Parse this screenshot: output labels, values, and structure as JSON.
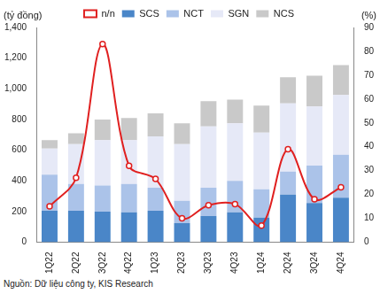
{
  "chart_data": {
    "type": "bar",
    "stacked": true,
    "grid": false,
    "legend": "top",
    "y_label": "(tỷ đồng)",
    "y2_label": "(%)",
    "source": "Nguồn: Dữ liệu công ty, KIS Research",
    "categories": [
      "1Q22",
      "2Q22",
      "3Q22",
      "4Q22",
      "1Q23",
      "2Q23",
      "3Q23",
      "4Q23",
      "1Q24",
      "2Q24",
      "3Q24",
      "4Q24"
    ],
    "series": [
      {
        "name": "SCS",
        "color": "#4a86c8",
        "values": [
          205,
          205,
          200,
          195,
          205,
          125,
          170,
          195,
          160,
          310,
          255,
          290
        ]
      },
      {
        "name": "NCT",
        "color": "#abc3e9",
        "values": [
          235,
          175,
          170,
          185,
          150,
          145,
          185,
          205,
          185,
          150,
          245,
          280
        ]
      },
      {
        "name": "SGN",
        "color": "#e6e9f7",
        "values": [
          170,
          260,
          295,
          285,
          335,
          370,
          400,
          375,
          370,
          445,
          385,
          390
        ]
      },
      {
        "name": "NCS",
        "color": "#c9c9c9",
        "values": [
          55,
          70,
          135,
          145,
          150,
          135,
          165,
          155,
          175,
          170,
          200,
          195
        ]
      },
      {
        "name": "n/n",
        "color": "#e02020",
        "type": "line",
        "axis": "y2",
        "marker": "circle",
        "values": [
          15,
          27,
          83,
          32,
          26.5,
          10,
          15.5,
          16,
          7,
          39,
          18,
          23
        ]
      }
    ],
    "ylim": [
      0,
      1400
    ],
    "yticks": [
      0,
      200,
      400,
      600,
      800,
      {
        "value": 1000,
        "label": "1,000"
      },
      {
        "value": 1200,
        "label": "1,200"
      },
      {
        "value": 1400,
        "label": "1,400"
      }
    ],
    "y2lim": [
      0,
      90
    ],
    "y2ticks": [
      0,
      10,
      20,
      30,
      40,
      50,
      60,
      70,
      80,
      90
    ]
  }
}
